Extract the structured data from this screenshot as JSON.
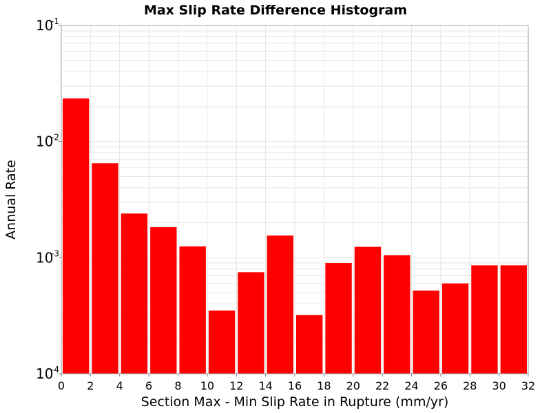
{
  "chart_data": {
    "type": "bar",
    "title": "Max Slip Rate Difference Histogram",
    "xlabel": "Section Max - Min Slip Rate in Rupture (mm/yr)",
    "ylabel": "Annual Rate",
    "y_scale": "log",
    "ylim": [
      0.0001,
      0.1
    ],
    "xlim": [
      0,
      32
    ],
    "bin_width": 2,
    "x_ticks": [
      "0",
      "2",
      "4",
      "6",
      "8",
      "10",
      "12",
      "14",
      "16",
      "18",
      "20",
      "22",
      "24",
      "26",
      "28",
      "30",
      "32"
    ],
    "y_ticks": [
      {
        "base": "10",
        "exp": "-1"
      },
      {
        "base": "10",
        "exp": "-2"
      },
      {
        "base": "10",
        "exp": "-3"
      },
      {
        "base": "10",
        "exp": "-4"
      }
    ],
    "bins": [
      {
        "x_start": 0,
        "x_end": 2,
        "value": 0.0235
      },
      {
        "x_start": 2,
        "x_end": 4,
        "value": 0.0065
      },
      {
        "x_start": 4,
        "x_end": 6,
        "value": 0.0024
      },
      {
        "x_start": 6,
        "x_end": 8,
        "value": 0.00183
      },
      {
        "x_start": 8,
        "x_end": 10,
        "value": 0.00125
      },
      {
        "x_start": 10,
        "x_end": 12,
        "value": 0.00035
      },
      {
        "x_start": 12,
        "x_end": 14,
        "value": 0.00075
      },
      {
        "x_start": 14,
        "x_end": 16,
        "value": 0.00155
      },
      {
        "x_start": 16,
        "x_end": 18,
        "value": 0.00032
      },
      {
        "x_start": 18,
        "x_end": 20,
        "value": 0.0009
      },
      {
        "x_start": 20,
        "x_end": 22,
        "value": 0.00124
      },
      {
        "x_start": 22,
        "x_end": 24,
        "value": 0.00105
      },
      {
        "x_start": 24,
        "x_end": 26,
        "value": 0.00052
      },
      {
        "x_start": 26,
        "x_end": 28,
        "value": 0.0006
      },
      {
        "x_start": 28,
        "x_end": 30,
        "value": 0.00086
      },
      {
        "x_start": 30,
        "x_end": 32,
        "value": 0.00086
      }
    ],
    "grid": true,
    "legend": "none",
    "colors": {
      "bar": "#ff0000",
      "grid": "#e6e6e6",
      "frame": "#a0a0a0"
    }
  }
}
